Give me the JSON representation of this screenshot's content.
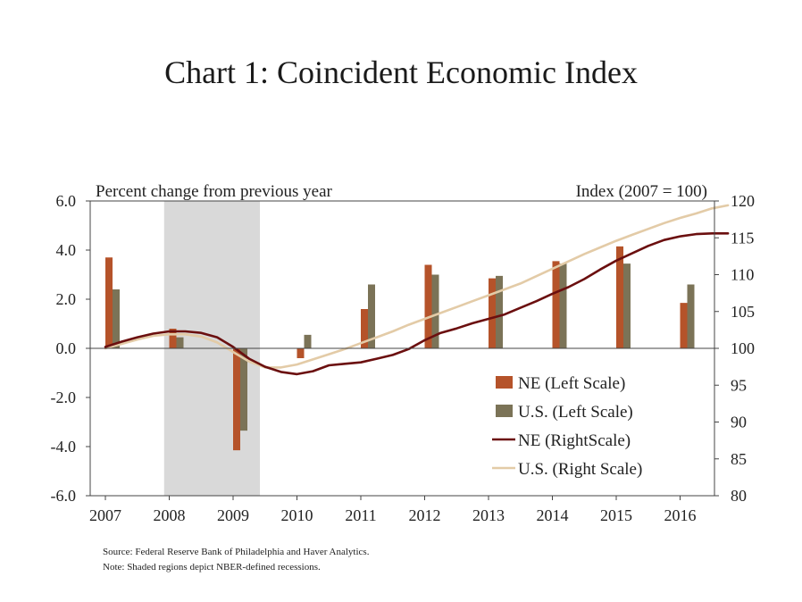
{
  "chart_data": {
    "type": "bar",
    "title": "Chart 1: Coincident Economic Index",
    "left_axis_label": "Percent change from previous year",
    "right_axis_label": "Index (2007 = 100)",
    "x_ticks": [
      "2007",
      "2008",
      "2009",
      "2010",
      "2011",
      "2012",
      "2013",
      "2014",
      "2015",
      "2016"
    ],
    "x_range": [
      2007,
      2016.95
    ],
    "left_axis": {
      "range": [
        -6,
        6
      ],
      "ticks": [
        "6.0",
        "4.0",
        "2.0",
        "0.0",
        "-2.0",
        "-4.0",
        "-6.0"
      ]
    },
    "right_axis": {
      "range": [
        80,
        120
      ],
      "ticks": [
        "120",
        "115",
        "110",
        "105",
        "100",
        "95",
        "90",
        "85",
        "80"
      ]
    },
    "recession": {
      "start": 2007.92,
      "end": 2009.42
    },
    "bar_series": [
      {
        "name": "NE (Left Scale)",
        "color": "#b5532a",
        "x": [
          2007,
          2008,
          2009,
          2010,
          2011,
          2012,
          2013,
          2014,
          2015,
          2016
        ],
        "values": [
          3.7,
          0.8,
          -4.15,
          -0.4,
          1.6,
          3.4,
          2.85,
          3.55,
          4.15,
          1.85
        ]
      },
      {
        "name": "U.S. (Left Scale)",
        "color": "#7b7357",
        "x": [
          2007,
          2008,
          2009,
          2010,
          2011,
          2012,
          2013,
          2014,
          2015,
          2016
        ],
        "values": [
          2.4,
          0.45,
          -3.35,
          0.55,
          2.6,
          3.0,
          2.95,
          3.45,
          3.45,
          2.6
        ]
      }
    ],
    "line_series": [
      {
        "name": "NE (RightScale)",
        "color": "#6b0f0f",
        "x": [
          2007.0,
          2007.25,
          2007.5,
          2007.75,
          2008.0,
          2008.25,
          2008.5,
          2008.75,
          2009.0,
          2009.25,
          2009.5,
          2009.75,
          2010.0,
          2010.25,
          2010.5,
          2010.75,
          2011.0,
          2011.25,
          2011.5,
          2011.75,
          2012.0,
          2012.25,
          2012.5,
          2012.75,
          2013.0,
          2013.25,
          2013.5,
          2013.75,
          2014.0,
          2014.25,
          2014.5,
          2014.75,
          2015.0,
          2015.25,
          2015.5,
          2015.75,
          2016.0,
          2016.25,
          2016.5,
          2016.75
        ],
        "values": [
          100.2,
          100.9,
          101.5,
          102.0,
          102.3,
          102.3,
          102.1,
          101.5,
          100.2,
          98.6,
          97.5,
          96.8,
          96.5,
          96.9,
          97.7,
          97.9,
          98.1,
          98.6,
          99.1,
          99.9,
          101.1,
          102.1,
          102.7,
          103.4,
          104.0,
          104.6,
          105.5,
          106.4,
          107.4,
          108.3,
          109.4,
          110.7,
          111.9,
          112.9,
          113.9,
          114.7,
          115.2,
          115.5,
          115.6,
          115.6
        ]
      },
      {
        "name": "U.S. (Right Scale)",
        "color": "#e3cba7",
        "x": [
          2007.0,
          2007.25,
          2007.5,
          2007.75,
          2008.0,
          2008.25,
          2008.5,
          2008.75,
          2009.0,
          2009.25,
          2009.5,
          2009.75,
          2010.0,
          2010.25,
          2010.5,
          2010.75,
          2011.0,
          2011.25,
          2011.5,
          2011.75,
          2012.0,
          2012.25,
          2012.5,
          2012.75,
          2013.0,
          2013.25,
          2013.5,
          2013.75,
          2014.0,
          2014.25,
          2014.5,
          2014.75,
          2015.0,
          2015.25,
          2015.5,
          2015.75,
          2016.0,
          2016.25,
          2016.5,
          2016.75
        ],
        "values": [
          100.0,
          100.6,
          101.2,
          101.7,
          101.9,
          101.9,
          101.6,
          100.8,
          99.5,
          98.2,
          97.4,
          97.4,
          97.8,
          98.5,
          99.2,
          99.9,
          100.7,
          101.5,
          102.3,
          103.2,
          104.0,
          104.8,
          105.6,
          106.4,
          107.2,
          108.0,
          108.8,
          109.8,
          110.8,
          111.8,
          112.8,
          113.7,
          114.6,
          115.4,
          116.2,
          117.0,
          117.7,
          118.3,
          119.0,
          119.4
        ]
      }
    ]
  },
  "footer": {
    "source": "Source: Federal Reserve Bank of Philadelphia and Haver Analytics.",
    "note": "Note: Shaded regions depict NBER-defined recessions."
  }
}
